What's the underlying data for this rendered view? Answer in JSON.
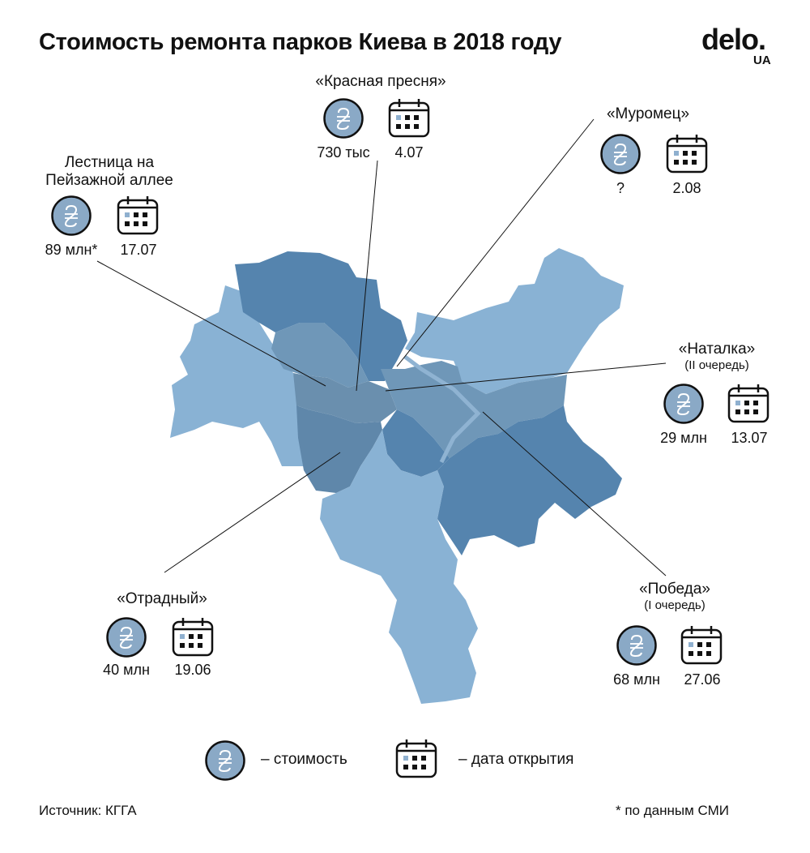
{
  "title": "Стоимость ремонта парков Киева в 2018 году",
  "logo": {
    "main": "delo.",
    "sub": "UA"
  },
  "colors": {
    "light": "#89b2d4",
    "mid": "#6f97b8",
    "dark": "#5584ae",
    "center": "#6a8fae",
    "icon_fill": "#8aa9c6",
    "calendar_accent": "#8fb0cf"
  },
  "icons": {
    "cost": "hryvnia-coin-icon",
    "date": "calendar-icon"
  },
  "parks": [
    {
      "id": "krasnaya",
      "name": "«Красная пресня»",
      "cost": "730 тыс",
      "date": "4.07"
    },
    {
      "id": "muromets",
      "name": "«Муромец»",
      "cost": "?",
      "date": "2.08"
    },
    {
      "id": "lestnica",
      "name_line1": "Лестница на",
      "name_line2": "Пейзажной аллее",
      "cost": "89 млн*",
      "date": "17.07"
    },
    {
      "id": "natalka",
      "name": "«Наталка»",
      "note": "(II очередь)",
      "cost": "29 млн",
      "date": "13.07"
    },
    {
      "id": "otradny",
      "name": "«Отрадный»",
      "cost": "40 млн",
      "date": "19.06"
    },
    {
      "id": "pobeda",
      "name": "«Победа»",
      "note": "(I очередь)",
      "cost": "68 млн",
      "date": "27.06"
    }
  ],
  "legend": {
    "cost_label": "– стоимость",
    "date_label": "– дата открытия"
  },
  "footer": {
    "source": "Источник: КГГА",
    "note": "* по данным СМИ"
  }
}
